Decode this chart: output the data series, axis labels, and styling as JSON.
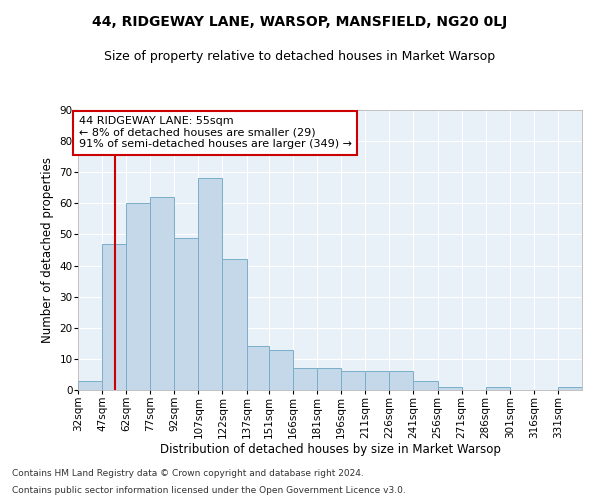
{
  "title": "44, RIDGEWAY LANE, WARSOP, MANSFIELD, NG20 0LJ",
  "subtitle": "Size of property relative to detached houses in Market Warsop",
  "xlabel": "Distribution of detached houses by size in Market Warsop",
  "ylabel": "Number of detached properties",
  "bar_labels": [
    "32sqm",
    "47sqm",
    "62sqm",
    "77sqm",
    "92sqm",
    "107sqm",
    "122sqm",
    "137sqm",
    "151sqm",
    "166sqm",
    "181sqm",
    "196sqm",
    "211sqm",
    "226sqm",
    "241sqm",
    "256sqm",
    "271sqm",
    "286sqm",
    "301sqm",
    "316sqm",
    "331sqm"
  ],
  "bar_values": [
    3,
    47,
    60,
    62,
    49,
    68,
    42,
    14,
    13,
    7,
    7,
    6,
    6,
    6,
    3,
    1,
    0,
    1,
    0,
    0,
    1
  ],
  "bar_color": "#c5d8ea",
  "bar_edge_color": "#7aaec8",
  "bin_edges": [
    32,
    47,
    62,
    77,
    92,
    107,
    122,
    137,
    151,
    166,
    181,
    196,
    211,
    226,
    241,
    256,
    271,
    286,
    301,
    316,
    331,
    346
  ],
  "annotation_text": "44 RIDGEWAY LANE: 55sqm\n← 8% of detached houses are smaller (29)\n91% of semi-detached houses are larger (349) →",
  "annotation_box_color": "#ffffff",
  "annotation_box_edge": "#cc0000",
  "vline_color": "#cc0000",
  "vline_x": 55,
  "ylim": [
    0,
    90
  ],
  "yticks": [
    0,
    10,
    20,
    30,
    40,
    50,
    60,
    70,
    80,
    90
  ],
  "footnote1": "Contains HM Land Registry data © Crown copyright and database right 2024.",
  "footnote2": "Contains public sector information licensed under the Open Government Licence v3.0.",
  "bg_color": "#e8f0f8",
  "grid_color": "#ffffff",
  "title_fontsize": 10,
  "subtitle_fontsize": 9,
  "axis_label_fontsize": 8.5,
  "tick_fontsize": 7.5,
  "annotation_fontsize": 8
}
